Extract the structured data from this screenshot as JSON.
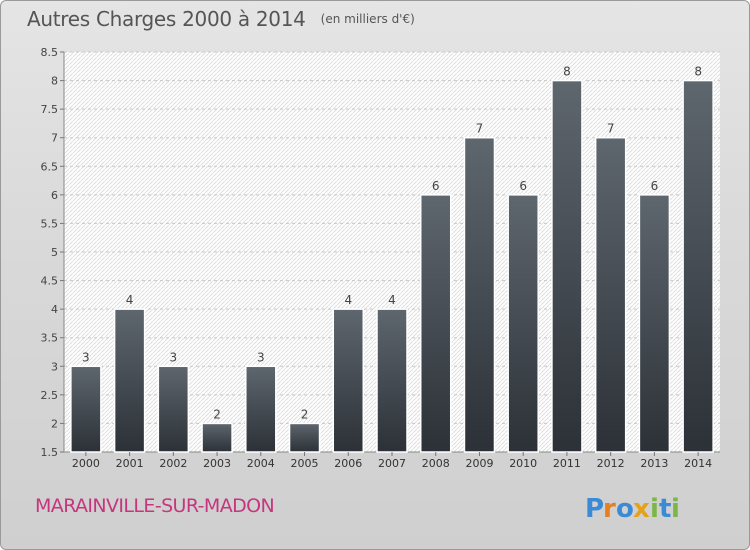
{
  "header": {
    "title": "Autres Charges 2000 à 2014",
    "subtitle": "(en milliers d'€)"
  },
  "footer": {
    "commune": "MARAINVILLE-SUR-MADON",
    "logo_text": "Proxiti"
  },
  "colors": {
    "bar_top": "#5e666e",
    "bar_bottom": "#2c3137",
    "commune_text": "#c6357e",
    "logo_p": "#3a8ad6",
    "logo_r": "#e67e22",
    "logo_o": "#3a8ad6",
    "logo_x": "#e4a11b",
    "logo_i1": "#7ab648",
    "logo_t": "#3a8ad6",
    "logo_i2": "#7ab648"
  },
  "chart_data": {
    "type": "bar",
    "title": "Autres Charges 2000 à 2014",
    "subtitle": "(en milliers d'€)",
    "categories": [
      "2000",
      "2001",
      "2002",
      "2003",
      "2004",
      "2005",
      "2006",
      "2007",
      "2008",
      "2009",
      "2010",
      "2011",
      "2012",
      "2013",
      "2014"
    ],
    "values": [
      3,
      4,
      3,
      2,
      3,
      2,
      4,
      4,
      6,
      7,
      6,
      8,
      7,
      6,
      8
    ],
    "data_labels": [
      "3",
      "4",
      "3",
      "2",
      "3",
      "2",
      "4",
      "4",
      "6",
      "7",
      "6",
      "8",
      "7",
      "6",
      "8"
    ],
    "ylim": [
      1.5,
      8.5
    ],
    "yticks": [
      "1.5",
      "2",
      "2.5",
      "3",
      "3.5",
      "4",
      "4.5",
      "5",
      "5.5",
      "6",
      "6.5",
      "7",
      "7.5",
      "8",
      "8.5"
    ],
    "grid": true,
    "legend": "none",
    "xlabel": "",
    "ylabel": ""
  }
}
